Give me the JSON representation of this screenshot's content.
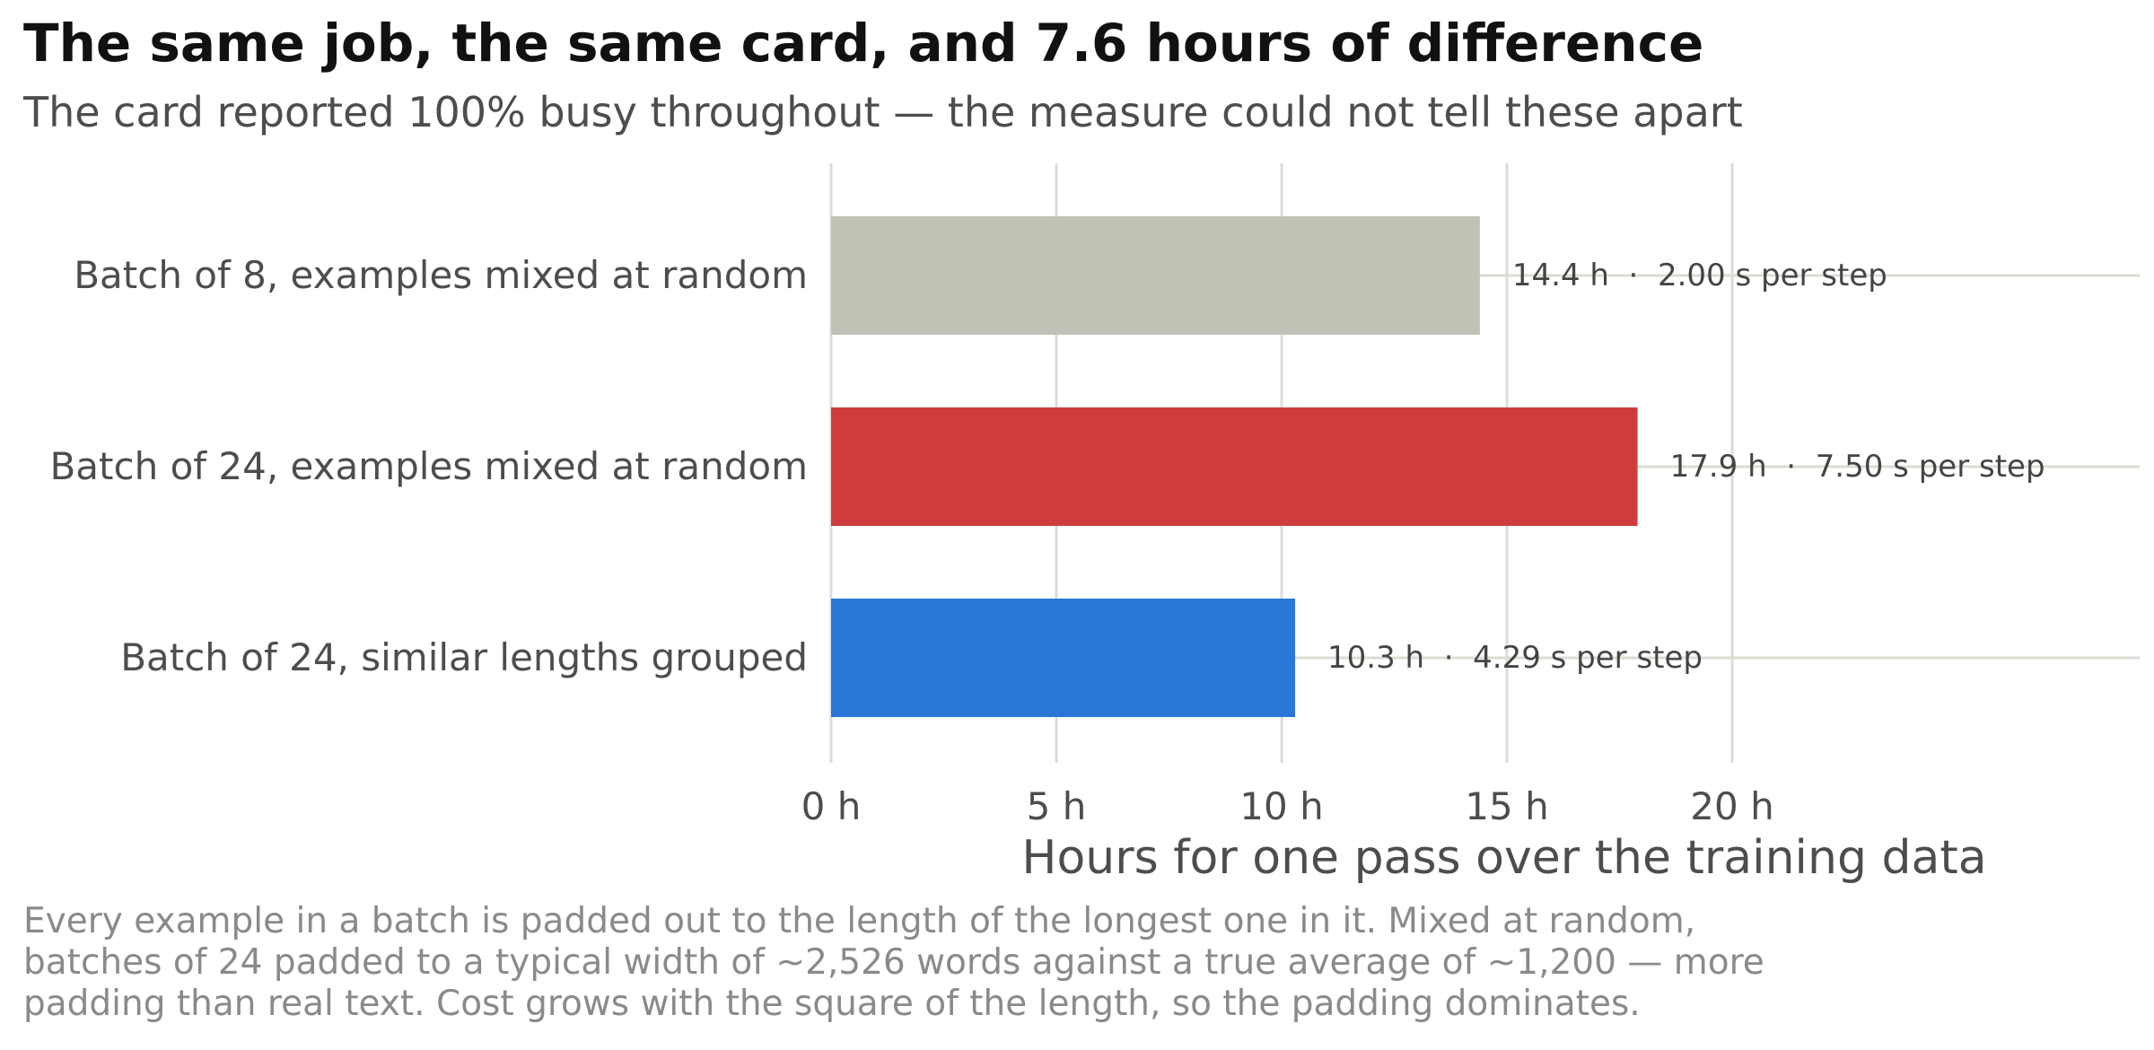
{
  "header": {
    "title": "The same job, the same card, and 7.6 hours of difference",
    "subtitle": "The card reported 100% busy throughout — the measure could not tell these apart"
  },
  "chart_data": {
    "type": "bar",
    "orientation": "horizontal",
    "categories": [
      "Batch of 8, examples mixed at random",
      "Batch of 24, examples mixed at random",
      "Batch of 24, similar lengths grouped"
    ],
    "values": [
      14.4,
      17.9,
      10.3
    ],
    "seconds_per_step": [
      2.0,
      7.5,
      4.29
    ],
    "value_labels": [
      "14.4 h  ·  2.00 s per step",
      "17.9 h  ·  7.50 s per step",
      "10.3 h  ·  4.29 s per step"
    ],
    "colors": [
      "#c1c1b5",
      "#d03c3c",
      "#2a78d5"
    ],
    "xlabel": "Hours for one pass over the training data",
    "xticks": [
      0,
      5,
      10,
      15,
      20
    ],
    "xtick_labels": [
      "0 h",
      "5 h",
      "10 h",
      "15 h",
      "20 h"
    ],
    "xlim": [
      0,
      29
    ],
    "grid": true,
    "gridline_color": "#dcdcd4"
  },
  "footnote": {
    "lines": [
      "Every example in a batch is padded out to the length of the longest one in it. Mixed at random,",
      "batches of 24 padded to a typical width of ~2,526 words against a true average of ~1,200 — more",
      "padding than real text. Cost grows with the square of the length, so the padding dominates."
    ]
  }
}
